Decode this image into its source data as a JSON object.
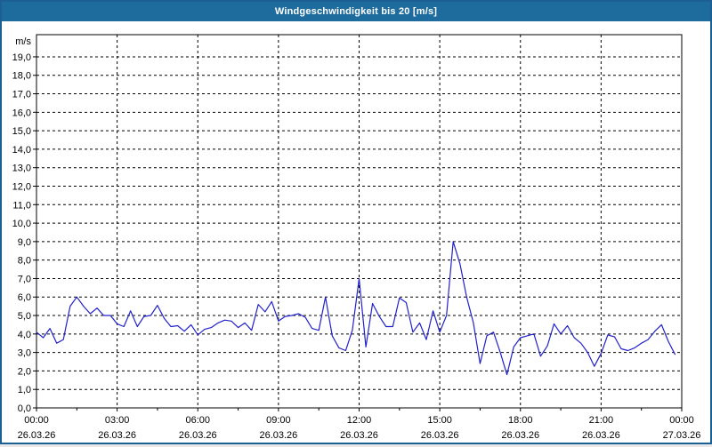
{
  "chart_data": {
    "type": "line",
    "title": "Windgeschwindigkeit bis 20 [m/s]",
    "y_unit": "m/s",
    "ylim": [
      0,
      20.2
    ],
    "xlim_hours": [
      0,
      24
    ],
    "grid": "dashed",
    "grid_color": "#000000",
    "background_color": "#ffffff",
    "titlebar_color": "#1e6b9d",
    "y_tick_labels": [
      "0,0",
      "1,0",
      "2,0",
      "3,0",
      "4,0",
      "5,0",
      "6,0",
      "7,0",
      "8,0",
      "9,0",
      "10,0",
      "11,0",
      "12,0",
      "13,0",
      "14,0",
      "15,0",
      "16,0",
      "17,0",
      "18,0",
      "19,0"
    ],
    "x_minor_tick_step_hours": 1.5,
    "x_ticks": [
      {
        "hour": 0,
        "time": "00:00",
        "date": "26.03.26"
      },
      {
        "hour": 3,
        "time": "03:00",
        "date": "26.03.26"
      },
      {
        "hour": 6,
        "time": "06:00",
        "date": "26.03.26"
      },
      {
        "hour": 9,
        "time": "09:00",
        "date": "26.03.26"
      },
      {
        "hour": 12,
        "time": "12:00",
        "date": "26.03.26"
      },
      {
        "hour": 15,
        "time": "15:00",
        "date": "26.03.26"
      },
      {
        "hour": 18,
        "time": "18:00",
        "date": "26.03.26"
      },
      {
        "hour": 21,
        "time": "21:00",
        "date": "26.03.26"
      },
      {
        "hour": 24,
        "time": "00:00",
        "date": "27.03.26"
      }
    ],
    "series": [
      {
        "name": "Windgeschwindigkeit",
        "unit": "m/s",
        "color": "#2121cc",
        "start_minutes": 0,
        "interval_minutes": 15,
        "values": [
          4.1,
          3.8,
          4.3,
          3.5,
          3.7,
          5.5,
          6.0,
          5.5,
          5.1,
          5.4,
          5.0,
          5.0,
          4.55,
          4.4,
          5.25,
          4.4,
          4.95,
          5.0,
          5.55,
          4.85,
          4.4,
          4.45,
          4.15,
          4.5,
          3.95,
          4.25,
          4.35,
          4.6,
          4.75,
          4.7,
          4.35,
          4.6,
          4.2,
          5.6,
          5.2,
          5.75,
          4.7,
          4.95,
          5.0,
          5.1,
          4.9,
          4.3,
          4.2,
          6.0,
          3.9,
          3.25,
          3.1,
          4.2,
          7.0,
          3.3,
          5.65,
          4.95,
          4.4,
          4.4,
          5.95,
          5.7,
          4.1,
          4.6,
          3.7,
          5.25,
          4.1,
          5.0,
          9.0,
          7.8,
          6.0,
          4.6,
          2.4,
          3.9,
          4.1,
          3.0,
          1.8,
          3.3,
          3.8,
          3.9,
          4.0,
          2.8,
          3.35,
          4.55,
          4.0,
          4.45,
          3.8,
          3.5,
          3.0,
          2.25,
          2.95,
          3.95,
          3.85,
          3.2,
          3.1,
          3.25,
          3.5,
          3.7,
          4.15,
          4.5,
          3.6,
          2.9
        ]
      }
    ]
  }
}
